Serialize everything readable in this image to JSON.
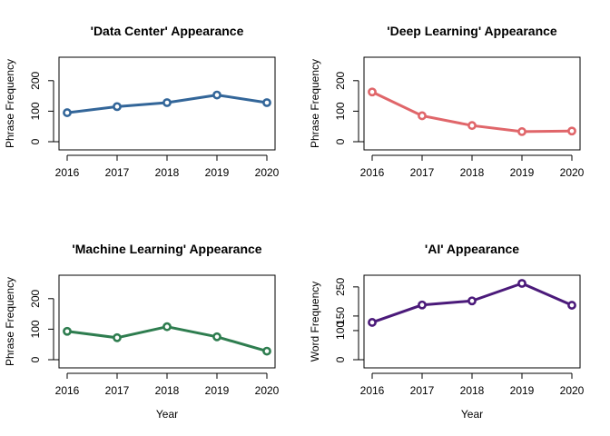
{
  "chart_data": [
    {
      "type": "line",
      "title": "'Data Center' Appearance",
      "xlabel": "",
      "ylabel": "Phrase Frequency",
      "color": "#336699",
      "x": [
        2016,
        2017,
        2018,
        2019,
        2020
      ],
      "y": [
        95,
        115,
        128,
        153,
        128
      ],
      "xlim": [
        2016,
        2020
      ],
      "ylim": [
        0,
        250
      ],
      "yticks": [
        0,
        100,
        200
      ],
      "grid": false
    },
    {
      "type": "line",
      "title": "'Deep Learning' Appearance",
      "xlabel": "",
      "ylabel": "Phrase Frequency",
      "color": "#e0666a",
      "x": [
        2016,
        2017,
        2018,
        2019,
        2020
      ],
      "y": [
        163,
        85,
        53,
        33,
        35
      ],
      "xlim": [
        2016,
        2020
      ],
      "ylim": [
        0,
        250
      ],
      "yticks": [
        0,
        100,
        200
      ],
      "grid": false
    },
    {
      "type": "line",
      "title": "'Machine Learning' Appearance",
      "xlabel": "Year",
      "ylabel": "Phrase Frequency",
      "color": "#2e7d4f",
      "x": [
        2016,
        2017,
        2018,
        2019,
        2020
      ],
      "y": [
        93,
        72,
        108,
        75,
        28
      ],
      "xlim": [
        2016,
        2020
      ],
      "ylim": [
        0,
        250
      ],
      "yticks": [
        0,
        100,
        200
      ],
      "grid": false
    },
    {
      "type": "line",
      "title": "'AI' Appearance",
      "xlabel": "Year",
      "ylabel": "Word Frequency",
      "color": "#4b1a7a",
      "x": [
        2016,
        2017,
        2018,
        2019,
        2020
      ],
      "y": [
        128,
        188,
        202,
        262,
        187
      ],
      "xlim": [
        2016,
        2020
      ],
      "ylim": [
        0,
        262
      ],
      "yticks": [
        0,
        100,
        150,
        250
      ],
      "grid": false
    }
  ]
}
